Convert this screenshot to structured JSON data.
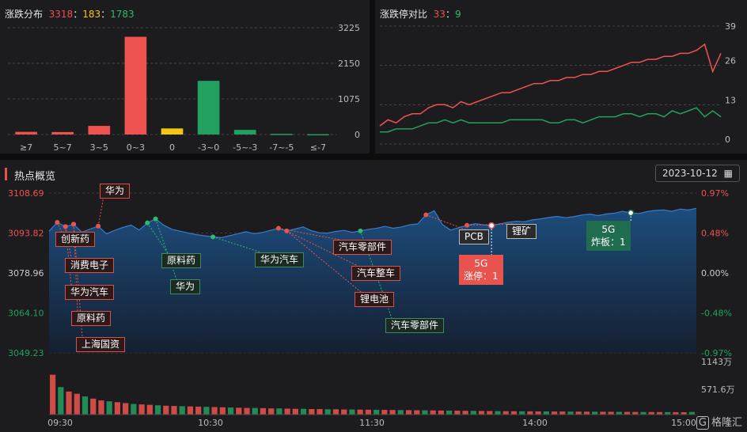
{
  "dist": {
    "title": "涨跌分布",
    "up": "3318",
    "flat": "183",
    "down": "1783",
    "sep": "："
  },
  "ratio": {
    "title": "涨跌停对比",
    "limit_up": "33",
    "limit_down": "9",
    "sep": "："
  },
  "hot": {
    "title": "热点概览",
    "date": "2023-10-12",
    "calendar_icon": "calendar-icon"
  },
  "logo": "格隆汇",
  "chart_data": [
    {
      "type": "bar",
      "categories": [
        "≥7",
        "5~7",
        "3~5",
        "0~3",
        "0",
        "-3~0",
        "-5~-3",
        "-7~-5",
        "≤-7"
      ],
      "values": [
        80,
        75,
        260,
        2950,
        183,
        1620,
        140,
        20,
        10
      ],
      "colors": [
        "#ef5350",
        "#ef5350",
        "#ef5350",
        "#ef5350",
        "#f5c518",
        "#22a060",
        "#22a060",
        "#22a060",
        "#22a060"
      ],
      "yticks": [
        "3225",
        "2150",
        "1075",
        "0"
      ],
      "ylim": [
        0,
        3225
      ],
      "grid": true
    },
    {
      "type": "line",
      "series": [
        {
          "color": "#ef5350",
          "values": [
            6,
            8,
            7,
            9,
            10,
            10,
            12,
            13,
            13,
            12,
            14,
            13,
            14,
            15,
            16,
            17,
            17,
            18,
            19,
            20,
            20,
            21,
            21,
            22,
            22,
            23,
            23,
            24,
            24,
            25,
            26,
            27,
            27,
            28,
            28,
            29,
            29,
            30,
            30,
            31,
            33,
            24,
            30
          ]
        },
        {
          "color": "#22a060",
          "values": [
            4,
            4,
            5,
            5,
            5,
            6,
            7,
            7,
            8,
            7,
            8,
            7,
            7,
            7,
            7,
            7,
            8,
            8,
            8,
            8,
            8,
            7,
            7,
            8,
            8,
            7,
            8,
            9,
            9,
            9,
            10,
            10,
            9,
            10,
            10,
            9,
            11,
            10,
            11,
            12,
            9,
            11,
            9
          ]
        }
      ],
      "yticks": [
        "39",
        "26",
        "13",
        "0"
      ],
      "ylim": [
        0,
        39
      ],
      "grid": true
    },
    {
      "type": "area",
      "yticks_left": [
        "3108.69",
        "3093.82",
        "3078.96",
        "3064.10",
        "3049.23"
      ],
      "yticks_right": [
        "0.97%",
        "0.48%",
        "0.00%",
        "-0.48%",
        "-0.97%"
      ],
      "ylim": [
        3049.23,
        3108.69
      ],
      "xticks": [
        "09:30",
        "10:30",
        "11:30",
        "14:00",
        "15:00"
      ],
      "volume_ticks": [
        "1143万",
        "571.6万"
      ],
      "values": [
        3094.5,
        3097.8,
        3096.2,
        3097.1,
        3094.1,
        3095.3,
        3096.4,
        3093.5,
        3094.8,
        3095.9,
        3096.8,
        3094.9,
        3097.6,
        3099.1,
        3096.7,
        3095.2,
        3094.5,
        3093.8,
        3093.2,
        3092.8,
        3092.4,
        3092.1,
        3092.8,
        3093.5,
        3094.3,
        3093.6,
        3094.0,
        3094.8,
        3095.6,
        3094.6,
        3095.3,
        3096.1,
        3094.7,
        3093.9,
        3093.8,
        3094.4,
        3094.8,
        3094.1,
        3094.6,
        3095.2,
        3095.6,
        3096.3,
        3095.6,
        3096.1,
        3096.9,
        3097.2,
        3100.6,
        3102.1,
        3097.0,
        3094.9,
        3095.8,
        3096.7,
        3097.3,
        3096.9,
        3096.6,
        3097.2,
        3097.8,
        3098.2,
        3098.0,
        3098.7,
        3099.1,
        3099.6,
        3100.0,
        3099.5,
        3099.9,
        3100.5,
        3100.9,
        3100.3,
        3100.9,
        3101.2,
        3101.9,
        3101.3,
        3101.1,
        3101.8,
        3102.2,
        3102.4,
        3101.9,
        3102.7,
        3102.4,
        3103.0
      ],
      "volumes": [
        900,
        620,
        520,
        470,
        410,
        360,
        320,
        300,
        280,
        260,
        240,
        230,
        220,
        210,
        200,
        195,
        190,
        185,
        180,
        175,
        170,
        165,
        160,
        155,
        150,
        150,
        145,
        140,
        140,
        135,
        130,
        130,
        125,
        125,
        120,
        120,
        115,
        115,
        112,
        110,
        108,
        106,
        104,
        102,
        100,
        98,
        96,
        94,
        92,
        90,
        88,
        86,
        84,
        82,
        80,
        78,
        76,
        75,
        74,
        73,
        72,
        71,
        70,
        69,
        68,
        67,
        66,
        65,
        64,
        63,
        62,
        61,
        60,
        59,
        58,
        57,
        56,
        55,
        54,
        60
      ],
      "annotations": [
        {
          "label": "华为",
          "style": "red",
          "anchor": 6
        },
        {
          "label": "创新药",
          "style": "red",
          "anchor": 1
        },
        {
          "label": "消费电子",
          "style": "red",
          "anchor": 2
        },
        {
          "label": "华为汽车",
          "style": "red",
          "anchor": 2
        },
        {
          "label": "原料药",
          "style": "red",
          "anchor": 3
        },
        {
          "label": "上海国资",
          "style": "red",
          "anchor": 3
        },
        {
          "label": "原料药",
          "style": "green",
          "anchor": 12
        },
        {
          "label": "华为",
          "style": "green",
          "anchor": 13
        },
        {
          "label": "华为汽车",
          "style": "green",
          "anchor": 20
        },
        {
          "label": "汽车零部件",
          "style": "red",
          "anchor": 28
        },
        {
          "label": "汽车整车",
          "style": "red",
          "anchor": 29
        },
        {
          "label": "锂电池",
          "style": "red",
          "anchor": 29
        },
        {
          "label": "汽车零部件",
          "style": "green",
          "anchor": 38
        },
        {
          "label": "PCB",
          "style": "dark",
          "anchor": 46
        },
        {
          "label": "锂矿",
          "style": "dark",
          "anchor": 51
        }
      ],
      "flags": [
        {
          "line1": "5G",
          "line2": "涨停：1",
          "color": "#e8534d"
        },
        {
          "line1": "5G",
          "line2": "炸板：1",
          "color": "#1f6d4e"
        }
      ]
    }
  ]
}
